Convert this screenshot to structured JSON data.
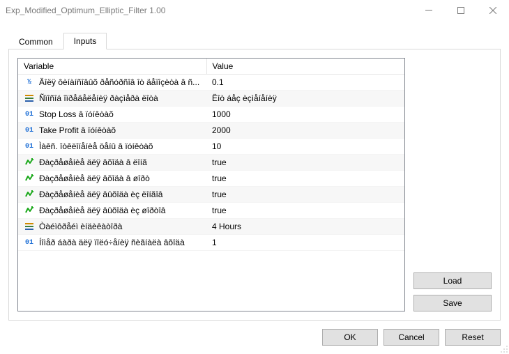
{
  "window": {
    "title": "Exp_Modified_Optimum_Elliptic_Filter 1.00"
  },
  "tabs": {
    "common": "Common",
    "inputs": "Inputs"
  },
  "grid": {
    "headers": {
      "variable": "Variable",
      "value": "Value"
    },
    "rows": [
      {
        "icon": "frac",
        "name": "Äîëÿ ôèíàíñîâûõ ðåñóðñîâ îò äåïîçèòà â ñ...",
        "value": "0.1"
      },
      {
        "icon": "lines",
        "name": "Ñïîñîá îïðåäåëåíèÿ ðàçìåðà ëîòà",
        "value": "Ëîò áåç èçìåíåíèÿ"
      },
      {
        "icon": "int",
        "name": "Stop Loss â ïóíêòàõ",
        "value": "1000"
      },
      {
        "icon": "int",
        "name": "Take Profit â ïóíêòàõ",
        "value": "2000"
      },
      {
        "icon": "int",
        "name": "Ìàêñ. îòêëîíåíèå öåíû â ïóíêòàõ",
        "value": "10"
      },
      {
        "icon": "arrow",
        "name": "Ðàçðåøåíèå äëÿ âõîäà â ëîíã",
        "value": "true"
      },
      {
        "icon": "arrow",
        "name": "Ðàçðåøåíèå äëÿ âõîäà â øîðò",
        "value": "true"
      },
      {
        "icon": "arrow",
        "name": "Ðàçðåøåíèå äëÿ âûõîäà èç ëîíãîâ",
        "value": "true"
      },
      {
        "icon": "arrow",
        "name": "Ðàçðåøåíèå äëÿ âûõîäà èç øîðòîâ",
        "value": "true"
      },
      {
        "icon": "lines",
        "name": "Òàéìôðåéì èíäèêàòîðà",
        "value": "4 Hours"
      },
      {
        "icon": "int",
        "name": "Íîìåð áàðà äëÿ ïîëó÷åíèÿ ñèãíàëà âõîäà",
        "value": "1"
      }
    ]
  },
  "buttons": {
    "load": "Load",
    "save": "Save",
    "ok": "OK",
    "cancel": "Cancel",
    "reset": "Reset"
  },
  "colors": {
    "border": "#d9d9d9",
    "gridBorder": "#828790",
    "altRow": "#f7f7f7",
    "btnFace": "#e1e1e1",
    "btnBorder": "#adadad"
  }
}
